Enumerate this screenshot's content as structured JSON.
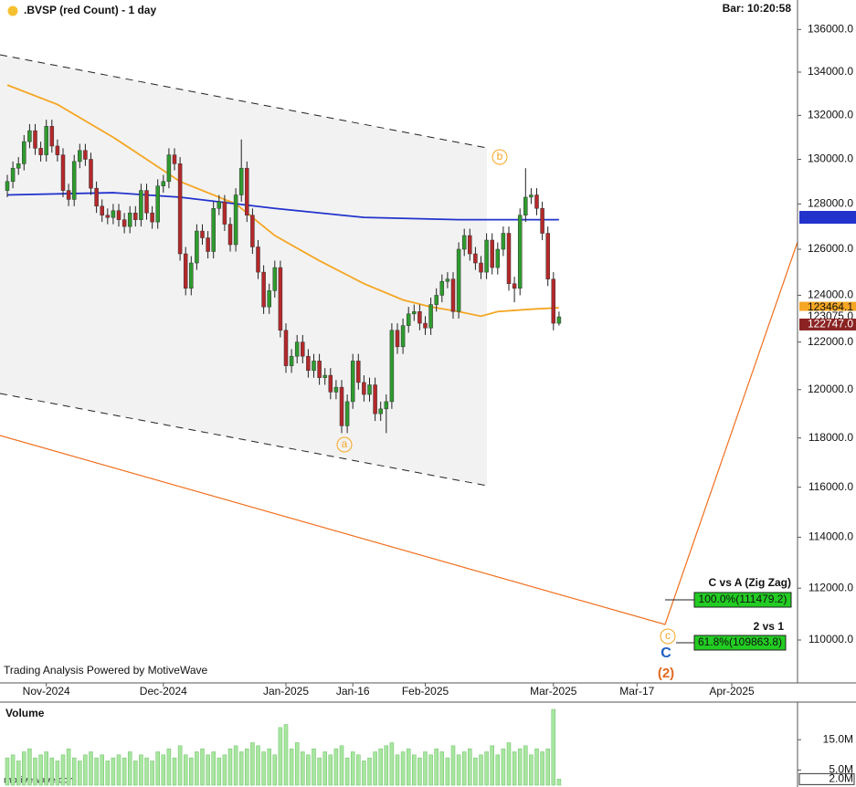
{
  "chart_data": {
    "type": "candlestick",
    "title": ".BVSP (red Count) - 1 day",
    "bar_time": "Bar: 10:20:58",
    "log_scale": true,
    "ylim": [
      108372,
      137400
    ],
    "yticks": [
      {
        "value": 110000,
        "label": "110000.0"
      },
      {
        "value": 112000,
        "label": "112000.0"
      },
      {
        "value": 114000,
        "label": "114000.0"
      },
      {
        "value": 116000,
        "label": "116000.0"
      },
      {
        "value": 118000,
        "label": "118000.0"
      },
      {
        "value": 120000,
        "label": "120000.0"
      },
      {
        "value": 122000,
        "label": "122000.0"
      },
      {
        "value": 124000,
        "label": "124000.0"
      },
      {
        "value": 126000,
        "label": "126000.0"
      },
      {
        "value": 128000,
        "label": "128000.0"
      },
      {
        "value": 130000,
        "label": "130000.0"
      },
      {
        "value": 132000,
        "label": "132000.0"
      },
      {
        "value": 134000,
        "label": "134000.0"
      },
      {
        "value": 136000,
        "label": "136000.0"
      }
    ],
    "xticks": [
      {
        "value": 7,
        "label": "Nov-2024"
      },
      {
        "value": 28,
        "label": "Dec-2024"
      },
      {
        "value": 50,
        "label": "Jan-2025"
      },
      {
        "value": 62,
        "label": "Jan-16"
      },
      {
        "value": 75,
        "label": "Feb-2025"
      },
      {
        "value": 98,
        "label": "Mar-2025"
      },
      {
        "value": 113,
        "label": "Mar-17"
      },
      {
        "value": 130,
        "label": "Apr-2025"
      }
    ],
    "up_color": "#2e9b2e",
    "down_color": "#b5282a",
    "open": [
      128600,
      129000,
      129600,
      129800,
      130800,
      131300,
      130500,
      130200,
      131500,
      130600,
      130200,
      128600,
      128200,
      129900,
      130400,
      130000,
      128700,
      127900,
      127500,
      127400,
      127700,
      127300,
      127000,
      127600,
      127300,
      128600,
      127600,
      127200,
      128800,
      129000,
      130200,
      129800,
      125800,
      124300,
      125400,
      126800,
      126500,
      125900,
      127800,
      128100,
      127100,
      126200,
      128400,
      129600,
      127500,
      126100,
      125000,
      123500,
      124200,
      125200,
      122500,
      121000,
      121400,
      122000,
      121400,
      120800,
      121200,
      120500,
      120600,
      119900,
      120100,
      118500,
      119500,
      121200,
      120300,
      119800,
      120200,
      119000,
      119200,
      119500,
      122500,
      121800,
      122700,
      123200,
      123300,
      122800,
      122600,
      123600,
      124000,
      124600,
      124700,
      123300,
      126000,
      126600,
      125800,
      125400,
      125000,
      126400,
      125200,
      126000,
      126700,
      124500,
      124300,
      127500,
      128300,
      128400,
      127800,
      126700,
      124700,
      122800
    ],
    "high": [
      129300,
      129900,
      130100,
      131100,
      131600,
      131600,
      130800,
      131800,
      131800,
      130900,
      130500,
      128900,
      130200,
      130700,
      130700,
      130300,
      129000,
      128200,
      127800,
      128000,
      128000,
      127600,
      127900,
      127900,
      128900,
      128900,
      127900,
      129100,
      129300,
      130500,
      130500,
      130100,
      126100,
      125700,
      127100,
      127100,
      126800,
      128100,
      128400,
      128400,
      127400,
      128700,
      130900,
      129900,
      127800,
      126400,
      125300,
      124500,
      125500,
      125500,
      122800,
      121700,
      122300,
      122300,
      121700,
      121500,
      121500,
      120900,
      120900,
      120400,
      120400,
      119800,
      121500,
      121500,
      120600,
      120500,
      120500,
      119500,
      119800,
      122800,
      122800,
      123000,
      123500,
      123600,
      123600,
      123100,
      123900,
      124300,
      124900,
      125000,
      125000,
      126300,
      126900,
      126900,
      126100,
      125700,
      126700,
      126700,
      126300,
      127000,
      127000,
      124800,
      127800,
      129600,
      128700,
      128700,
      128100,
      127000,
      125000,
      123300
    ],
    "low": [
      128300,
      128700,
      129300,
      129500,
      130500,
      130200,
      129900,
      129900,
      130300,
      129900,
      128300,
      127900,
      127900,
      129600,
      129700,
      128400,
      127600,
      127200,
      127100,
      127100,
      127000,
      126700,
      126700,
      127000,
      127000,
      127300,
      126900,
      126900,
      128500,
      128700,
      129500,
      125500,
      124000,
      124000,
      125100,
      126200,
      125600,
      125600,
      127500,
      126800,
      125900,
      125900,
      128100,
      127200,
      125800,
      124700,
      123200,
      123200,
      123900,
      122200,
      120700,
      120700,
      121100,
      121100,
      120500,
      120500,
      120200,
      120200,
      119600,
      119600,
      118200,
      118200,
      119200,
      120000,
      119500,
      119500,
      118700,
      118700,
      118200,
      119200,
      121500,
      121500,
      122400,
      122900,
      122500,
      122300,
      122300,
      123300,
      123700,
      124300,
      123000,
      123000,
      125700,
      125500,
      125100,
      124700,
      124700,
      124900,
      124900,
      125700,
      124200,
      123700,
      124000,
      127200,
      128000,
      127500,
      126400,
      124400,
      122500,
      122700
    ],
    "close": [
      129000,
      129600,
      129800,
      130800,
      131300,
      130500,
      130200,
      131500,
      130600,
      130200,
      128600,
      128200,
      129900,
      130400,
      130000,
      128700,
      127900,
      127500,
      127400,
      127700,
      127300,
      127000,
      127600,
      127300,
      128600,
      127600,
      127200,
      128800,
      129000,
      130200,
      129800,
      125800,
      124300,
      125400,
      126800,
      126500,
      125900,
      127800,
      128100,
      127100,
      126200,
      128400,
      129600,
      127500,
      126100,
      125000,
      123500,
      124200,
      125200,
      122500,
      121000,
      121400,
      122000,
      121400,
      120800,
      121200,
      120500,
      120600,
      119900,
      120100,
      118500,
      119500,
      121200,
      120300,
      119800,
      120200,
      119000,
      119200,
      119500,
      122500,
      121800,
      122700,
      123200,
      123300,
      122800,
      122600,
      123600,
      124000,
      124600,
      124700,
      123300,
      126000,
      126600,
      125800,
      125400,
      125000,
      126400,
      125200,
      126000,
      126700,
      124500,
      124300,
      127500,
      128300,
      128400,
      127800,
      126700,
      124700,
      122800,
      123075
    ],
    "ma_lines": [
      {
        "color": "#f5a623",
        "x": [
          0,
          9,
          19,
          25,
          31,
          41,
          48,
          56,
          64,
          71,
          76,
          81,
          85,
          88,
          94,
          99
        ],
        "values": [
          133400,
          132500,
          131000,
          130000,
          129000,
          128000,
          126600,
          125500,
          124500,
          123800,
          123500,
          123300,
          123100,
          123300,
          123400,
          123464.1
        ]
      },
      {
        "color": "#2233cc",
        "x": [
          0,
          19,
          31,
          48,
          64,
          81,
          99
        ],
        "values": [
          128400,
          128500,
          128300,
          127800,
          127400,
          127300,
          127300
        ]
      }
    ],
    "price_labels": [
      {
        "value": 123464.1,
        "label": "123464.1",
        "color": "#f5a623"
      },
      {
        "value": 123075,
        "label": "123075.0",
        "color": "#ffffff"
      },
      {
        "value": 122747,
        "label": "122747.0",
        "color": "#8b2323"
      }
    ],
    "volume": {
      "title": "Volume",
      "color": "#a8e6a0",
      "ylim": [
        0,
        26.5
      ],
      "yticks": [
        {
          "value": 15,
          "label": "15.0M"
        },
        {
          "value": 5,
          "label": "5.0M"
        }
      ],
      "current": {
        "value": 2,
        "label": "2.0M"
      },
      "values": [
        9,
        10,
        8,
        11,
        12,
        9,
        10,
        11,
        9,
        8,
        10,
        12,
        9,
        8,
        10,
        11,
        9,
        10,
        8,
        9,
        10,
        9,
        11,
        8,
        10,
        9,
        8,
        11,
        10,
        12,
        9,
        13,
        10,
        9,
        11,
        12,
        10,
        11,
        9,
        10,
        12,
        13,
        11,
        12,
        14,
        13,
        11,
        12,
        10,
        19,
        20,
        12,
        14,
        11,
        10,
        12,
        9,
        11,
        10,
        12,
        13,
        9,
        11,
        10,
        8,
        9,
        11,
        12,
        13,
        14,
        10,
        11,
        12,
        10,
        9,
        11,
        10,
        12,
        11,
        9,
        13,
        10,
        11,
        12,
        9,
        10,
        11,
        13,
        10,
        12,
        14,
        11,
        12,
        13,
        10,
        12,
        11,
        12,
        25,
        2
      ]
    },
    "annotations": {
      "credit": "Trading Analysis Powered by MotiveWave",
      "watermark": "motivewave.com",
      "waves": [
        "b",
        "a",
        "c",
        "C",
        "(2)"
      ],
      "boxes": [
        {
          "title": "C vs A (Zig Zag)",
          "label": "100.0%(111479.2)"
        },
        {
          "title": "2 vs 1",
          "label": "61.8%(109863.8)"
        }
      ]
    }
  }
}
